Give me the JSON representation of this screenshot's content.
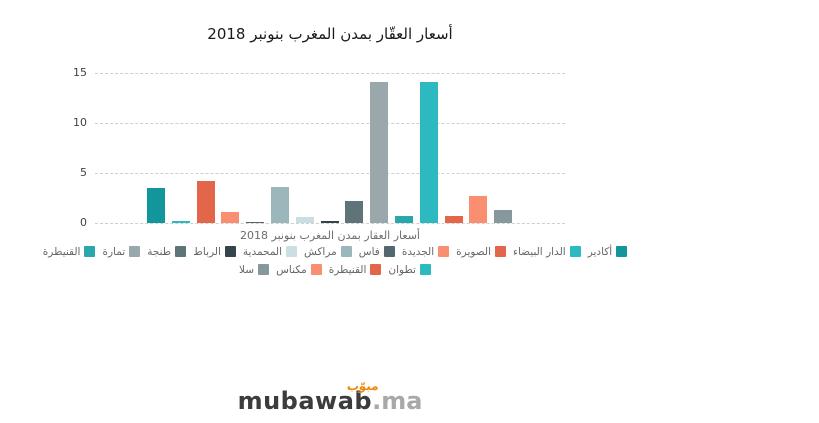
{
  "title": "أسعار العقّار بمدن المغرب بنونبر 2018",
  "x_axis_title": "أسعار العقار بمدن المغرب بنونبر 2018",
  "y_axis": {
    "ticks": [
      15,
      10,
      5,
      0
    ]
  },
  "chart_data": {
    "type": "bar",
    "title": "أسعار العقّار بمدن المغرب بنونبر 2018",
    "xlabel": "أسعار العقار بمدن المغرب بنونبر 2018",
    "ylabel": "",
    "ylim": [
      0,
      15
    ],
    "yticks": [
      0,
      5,
      10,
      15
    ],
    "grid": "horizontal-dashed",
    "legend_position": "bottom",
    "categories": [
      "أسعار العقار بمدن المغرب بنونبر 2018"
    ],
    "series": [
      {
        "name": "أكادير",
        "values": [
          3.5
        ],
        "color": "#12969b"
      },
      {
        "name": "الدار البيضاء",
        "values": [
          0.2
        ],
        "color": "#2cbac0"
      },
      {
        "name": "الصويرة",
        "values": [
          4.2
        ],
        "color": "#e4664a"
      },
      {
        "name": "الجديدة",
        "values": [
          1.1
        ],
        "color": "#fa8e71"
      },
      {
        "name": "فاس",
        "values": [
          0.1
        ],
        "color": "#53686e"
      },
      {
        "name": "مراكش",
        "values": [
          3.6
        ],
        "color": "#9cb7bc"
      },
      {
        "name": "المحمدية",
        "values": [
          0.6
        ],
        "color": "#c9dfe2"
      },
      {
        "name": "الرباط",
        "values": [
          0.2
        ],
        "color": "#34444b"
      },
      {
        "name": "طنجة",
        "values": [
          2.2
        ],
        "color": "#5e7478"
      },
      {
        "name": "تمارة",
        "values": [
          14.1
        ],
        "color": "#9aa8ac"
      },
      {
        "name": "القنيطرة",
        "values": [
          0.7
        ],
        "color": "#28a7ac"
      },
      {
        "name": "تطوان",
        "values": [
          14.1
        ],
        "color": "#2cbac0"
      },
      {
        "name": "القنيطرة",
        "values": [
          0.7
        ],
        "color": "#e4664a"
      },
      {
        "name": "مكناس",
        "values": [
          2.7
        ],
        "color": "#fa8e71"
      },
      {
        "name": "سلا",
        "values": [
          1.3
        ],
        "color": "#87989c"
      }
    ],
    "legend_rows": [
      11,
      4
    ]
  },
  "logo": {
    "name": "mubawab",
    "tld": ".ma",
    "arabic": "مبوّب",
    "arabic_color": "#f0890a"
  }
}
